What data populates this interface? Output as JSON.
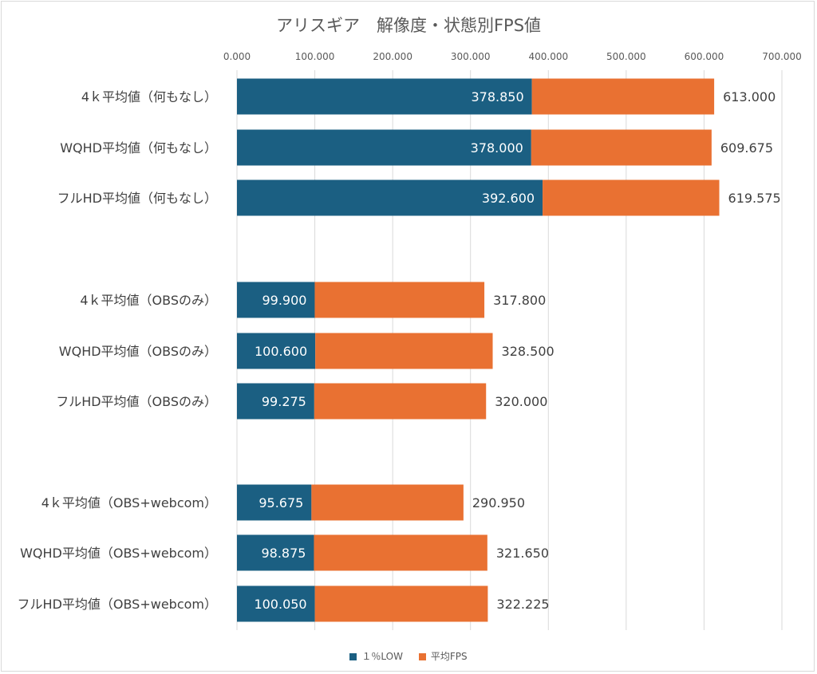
{
  "chart_data": {
    "type": "bar",
    "orientation": "horizontal",
    "stacked": true,
    "title": "アリスギア　解像度・状態別FPS値",
    "categories": [
      "4ｋ平均値（何もなし）",
      "WQHD平均値（何もなし）",
      "フルHD平均値（何もなし）",
      "4ｋ平均値（OBSのみ）",
      "WQHD平均値（OBSのみ）",
      "フルHD平均値（OBSのみ）",
      "4ｋ平均値（OBS+webcom）",
      "WQHD平均値（OBS+webcom）",
      "フルHD平均値（OBS+webcom）"
    ],
    "group_of_category": [
      0,
      0,
      0,
      1,
      1,
      1,
      2,
      2,
      2
    ],
    "series": [
      {
        "name": "１％LOW",
        "color": "#1b5f82",
        "values": [
          378.85,
          378.0,
          392.6,
          99.9,
          100.6,
          99.275,
          95.675,
          98.875,
          100.05
        ],
        "labels": [
          "378.850",
          "378.000",
          "392.600",
          "99.900",
          "100.600",
          "99.275",
          "95.675",
          "98.875",
          "100.050"
        ]
      },
      {
        "name": "平均FPS",
        "color": "#e97132",
        "totals": [
          613.0,
          609.675,
          619.575,
          317.8,
          328.5,
          320.0,
          290.95,
          321.65,
          322.225
        ],
        "labels": [
          "613.000",
          "609.675",
          "619.575",
          "317.800",
          "328.500",
          "320.000",
          "290.950",
          "321.650",
          "322.225"
        ]
      }
    ],
    "xlim": [
      0,
      700
    ],
    "xticks": [
      0,
      100,
      200,
      300,
      400,
      500,
      600,
      700
    ],
    "xtick_labels": [
      "0.000",
      "100.000",
      "200.000",
      "300.000",
      "400.000",
      "500.000",
      "600.000",
      "700.000"
    ],
    "x_axis_position": "top",
    "grid": true,
    "legend_position": "bottom"
  }
}
